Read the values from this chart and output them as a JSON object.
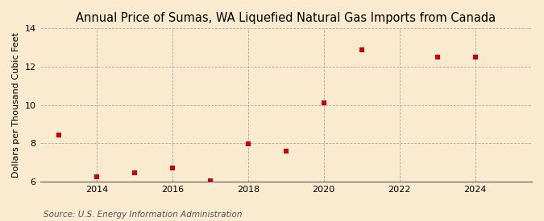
{
  "title": "Annual Price of Sumas, WA Liquefied Natural Gas Imports from Canada",
  "ylabel": "Dollars per Thousand Cubic Feet",
  "source": "Source: U.S. Energy Information Administration",
  "x_years": [
    2013,
    2014,
    2015,
    2016,
    2017,
    2018,
    2019,
    2020,
    2021,
    2023,
    2024
  ],
  "values": [
    8.45,
    6.25,
    6.45,
    6.7,
    6.02,
    7.98,
    7.6,
    10.1,
    12.9,
    12.5,
    12.5
  ],
  "marker_color": "#cc0000",
  "marker": "s",
  "marker_size": 4,
  "background_color": "#faebd0",
  "plot_bg_color": "#faebd0",
  "grid_color": "#999999",
  "xlim": [
    2012.5,
    2025.5
  ],
  "ylim": [
    6,
    14
  ],
  "yticks": [
    6,
    8,
    10,
    12,
    14
  ],
  "xticks": [
    2014,
    2016,
    2018,
    2020,
    2022,
    2024
  ],
  "title_fontsize": 10.5,
  "label_fontsize": 8,
  "tick_fontsize": 8,
  "source_fontsize": 7.5
}
